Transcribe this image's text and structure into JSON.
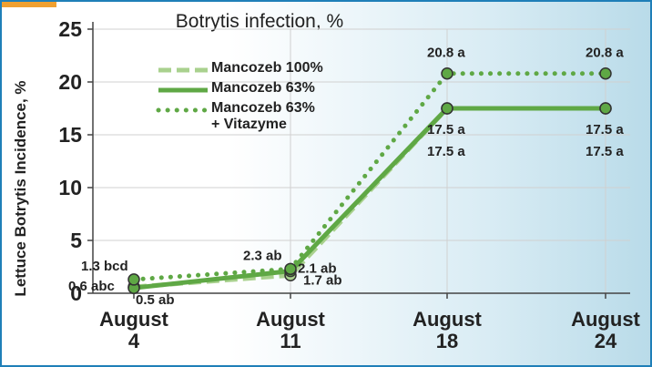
{
  "chart_data": {
    "type": "line",
    "title": "Botrytis infection, %",
    "y_label": "Lettuce Botrytis Incidence, %",
    "categories": [
      "August\n4",
      "August\n11",
      "August\n18",
      "August\n24"
    ],
    "series": [
      {
        "name": "Mancozeb 100%",
        "color": "#a9d18e",
        "style": "dashed",
        "values": [
          0.6,
          1.7,
          17.5,
          17.5
        ],
        "value_labels": [
          "0.6 abc",
          "1.7 ab",
          "17.5 a",
          "17.5 a"
        ]
      },
      {
        "name": "Mancozeb 63%",
        "color": "#5fa845",
        "style": "solid",
        "values": [
          0.5,
          2.1,
          17.5,
          17.5
        ],
        "value_labels": [
          "0.5 ab",
          "2.1 ab",
          "17.5 a",
          "17.5 a"
        ]
      },
      {
        "name": "Mancozeb 63%\n+ Vitazyme",
        "color": "#5fa845",
        "style": "dotted",
        "values": [
          1.3,
          2.3,
          20.8,
          20.8
        ],
        "value_labels": [
          "1.3 bcd",
          "2.3 ab",
          "20.8 a",
          "20.8 a"
        ]
      }
    ],
    "ylim": [
      0,
      25
    ],
    "yticks": [
      0,
      5,
      10,
      15,
      20,
      25
    ],
    "grid": true
  }
}
